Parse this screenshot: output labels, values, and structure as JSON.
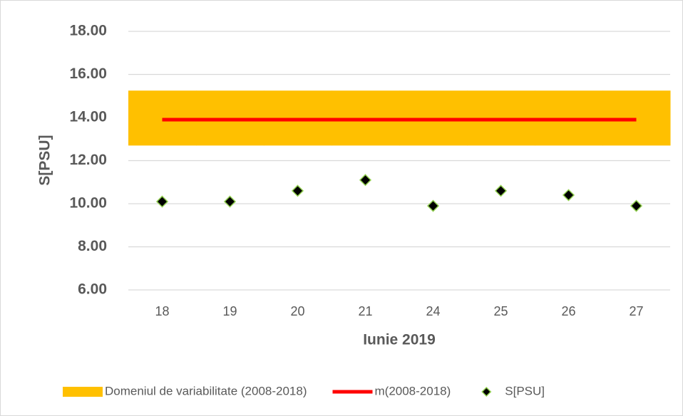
{
  "chart_data": {
    "type": "mixed",
    "y_label": "S[PSU]",
    "x_label": "Iunie 2019",
    "categories": [
      "18",
      "19",
      "20",
      "21",
      "24",
      "25",
      "26",
      "27"
    ],
    "ylim": [
      6,
      18
    ],
    "yticks": [
      {
        "value": 6,
        "label": "6.00"
      },
      {
        "value": 8,
        "label": "8.00"
      },
      {
        "value": 10,
        "label": "10.00"
      },
      {
        "value": 12,
        "label": "12.00"
      },
      {
        "value": 14,
        "label": "14.00"
      },
      {
        "value": 16,
        "label": "16.00"
      },
      {
        "value": 18,
        "label": "18.00"
      }
    ],
    "grid": true,
    "legend": "bottom",
    "series": [
      {
        "name": "Domeniul de variabilitate (2008-2018)",
        "type": "band",
        "color": "#ffc000",
        "low": [
          12.7,
          12.7,
          12.7,
          12.7,
          12.7,
          12.7,
          12.7,
          12.7
        ],
        "high": [
          15.25,
          15.25,
          15.25,
          15.25,
          15.25,
          15.25,
          15.25,
          15.25
        ]
      },
      {
        "name": "m(2008-2018)",
        "type": "line",
        "color": "#ff0000",
        "values": [
          13.9,
          13.9,
          13.9,
          13.9,
          13.9,
          13.9,
          13.9,
          13.9
        ]
      },
      {
        "name": "S[PSU]",
        "type": "scatter",
        "color": "#000000",
        "edge_color": "#92d050",
        "values": [
          10.1,
          10.1,
          10.6,
          11.1,
          9.9,
          10.6,
          10.4,
          9.9
        ]
      }
    ]
  }
}
